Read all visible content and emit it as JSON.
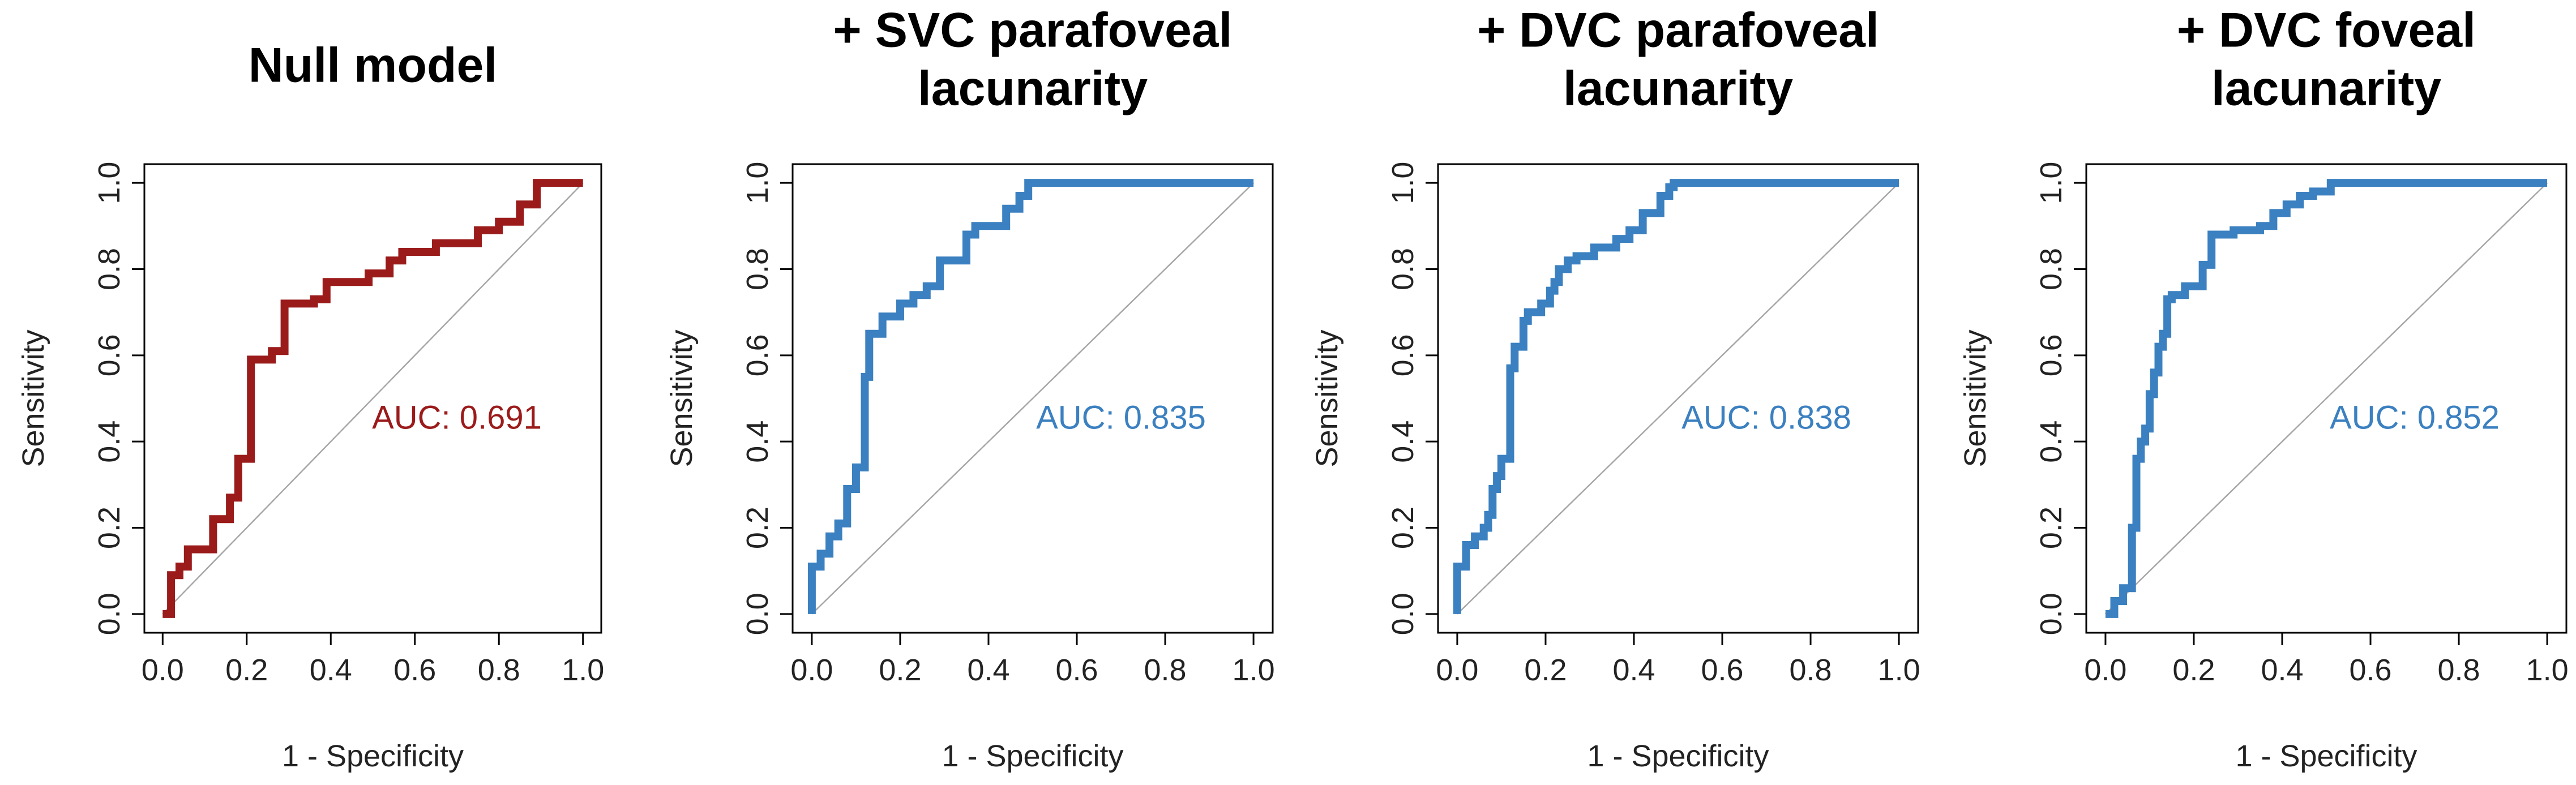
{
  "chart_data": [
    {
      "type": "line",
      "title_lines": [
        "Null model"
      ],
      "xlabel": "1 - Specificity",
      "ylabel": "Sensitivity",
      "xlim": [
        0,
        1
      ],
      "ylim": [
        0,
        1
      ],
      "xticks": [
        "0.0",
        "0.2",
        "0.4",
        "0.6",
        "0.8",
        "1.0"
      ],
      "yticks": [
        "0.0",
        "0.2",
        "0.4",
        "0.6",
        "0.8",
        "1.0"
      ],
      "color": "#9b1b1b",
      "auc_label": "AUC: 0.691",
      "auc_position": {
        "x": 0.7,
        "y": 0.45
      },
      "diagonal": true,
      "series": [
        {
          "name": "ROC",
          "x": [
            0.0,
            0.02,
            0.02,
            0.04,
            0.04,
            0.06,
            0.06,
            0.12,
            0.12,
            0.16,
            0.16,
            0.18,
            0.18,
            0.21,
            0.21,
            0.26,
            0.26,
            0.29,
            0.29,
            0.36,
            0.36,
            0.39,
            0.39,
            0.49,
            0.49,
            0.54,
            0.54,
            0.57,
            0.57,
            0.65,
            0.65,
            0.75,
            0.75,
            0.8,
            0.8,
            0.85,
            0.85,
            0.89,
            0.89,
            1.0
          ],
          "y": [
            0.0,
            0.0,
            0.09,
            0.09,
            0.11,
            0.11,
            0.15,
            0.15,
            0.22,
            0.22,
            0.27,
            0.27,
            0.36,
            0.36,
            0.59,
            0.59,
            0.61,
            0.61,
            0.72,
            0.72,
            0.73,
            0.73,
            0.77,
            0.77,
            0.79,
            0.79,
            0.82,
            0.82,
            0.84,
            0.84,
            0.86,
            0.86,
            0.89,
            0.89,
            0.91,
            0.91,
            0.95,
            0.95,
            1.0,
            1.0
          ]
        }
      ]
    },
    {
      "type": "line",
      "title_lines": [
        "+ SVC parafoveal",
        "lacunarity"
      ],
      "xlabel": "1 - Specificity",
      "ylabel": "Sensitivity",
      "xlim": [
        0,
        1
      ],
      "ylim": [
        0,
        1
      ],
      "xticks": [
        "0.0",
        "0.2",
        "0.4",
        "0.6",
        "0.8",
        "1.0"
      ],
      "yticks": [
        "0.0",
        "0.2",
        "0.4",
        "0.6",
        "0.8",
        "1.0"
      ],
      "color": "#3b80c0",
      "auc_label": "AUC: 0.835",
      "auc_position": {
        "x": 0.7,
        "y": 0.45
      },
      "diagonal": true,
      "series": [
        {
          "name": "ROC",
          "x": [
            0.0,
            0.0,
            0.02,
            0.02,
            0.04,
            0.04,
            0.06,
            0.06,
            0.08,
            0.08,
            0.1,
            0.1,
            0.12,
            0.12,
            0.13,
            0.13,
            0.16,
            0.16,
            0.2,
            0.2,
            0.23,
            0.23,
            0.26,
            0.26,
            0.29,
            0.29,
            0.35,
            0.35,
            0.37,
            0.37,
            0.44,
            0.44,
            0.47,
            0.47,
            0.49,
            0.49,
            1.0
          ],
          "y": [
            0.0,
            0.11,
            0.11,
            0.14,
            0.14,
            0.18,
            0.18,
            0.21,
            0.21,
            0.29,
            0.29,
            0.34,
            0.34,
            0.55,
            0.55,
            0.65,
            0.65,
            0.69,
            0.69,
            0.72,
            0.72,
            0.74,
            0.74,
            0.76,
            0.76,
            0.82,
            0.82,
            0.88,
            0.88,
            0.9,
            0.9,
            0.94,
            0.94,
            0.97,
            0.97,
            1.0,
            1.0
          ]
        }
      ]
    },
    {
      "type": "line",
      "title_lines": [
        "+ DVC parafoveal",
        "lacunarity"
      ],
      "xlabel": "1 - Specificity",
      "ylabel": "Sensitivity",
      "xlim": [
        0,
        1
      ],
      "ylim": [
        0,
        1
      ],
      "xticks": [
        "0.0",
        "0.2",
        "0.4",
        "0.6",
        "0.8",
        "1.0"
      ],
      "yticks": [
        "0.0",
        "0.2",
        "0.4",
        "0.6",
        "0.8",
        "1.0"
      ],
      "color": "#3b80c0",
      "auc_label": "AUC: 0.838",
      "auc_position": {
        "x": 0.7,
        "y": 0.45
      },
      "diagonal": true,
      "series": [
        {
          "name": "ROC",
          "x": [
            0.0,
            0.0,
            0.02,
            0.02,
            0.04,
            0.04,
            0.06,
            0.06,
            0.07,
            0.07,
            0.08,
            0.08,
            0.09,
            0.09,
            0.1,
            0.1,
            0.12,
            0.12,
            0.13,
            0.13,
            0.15,
            0.15,
            0.16,
            0.16,
            0.19,
            0.19,
            0.21,
            0.21,
            0.22,
            0.22,
            0.23,
            0.23,
            0.25,
            0.25,
            0.27,
            0.27,
            0.31,
            0.31,
            0.36,
            0.36,
            0.39,
            0.39,
            0.42,
            0.42,
            0.46,
            0.46,
            0.48,
            0.48,
            0.49,
            0.49,
            1.0
          ],
          "y": [
            0.0,
            0.11,
            0.11,
            0.16,
            0.16,
            0.18,
            0.18,
            0.2,
            0.2,
            0.23,
            0.23,
            0.29,
            0.29,
            0.32,
            0.32,
            0.36,
            0.36,
            0.57,
            0.57,
            0.62,
            0.62,
            0.68,
            0.68,
            0.7,
            0.7,
            0.72,
            0.72,
            0.75,
            0.75,
            0.77,
            0.77,
            0.8,
            0.8,
            0.82,
            0.82,
            0.83,
            0.83,
            0.85,
            0.85,
            0.87,
            0.87,
            0.89,
            0.89,
            0.93,
            0.93,
            0.97,
            0.97,
            0.99,
            0.99,
            1.0,
            1.0
          ]
        }
      ]
    },
    {
      "type": "line",
      "title_lines": [
        "+ DVC foveal",
        "lacunarity"
      ],
      "xlabel": "1 - Specificity",
      "ylabel": "Sensitivity",
      "xlim": [
        0,
        1
      ],
      "ylim": [
        0,
        1
      ],
      "xticks": [
        "0.0",
        "0.2",
        "0.4",
        "0.6",
        "0.8",
        "1.0"
      ],
      "yticks": [
        "0.0",
        "0.2",
        "0.4",
        "0.6",
        "0.8",
        "1.0"
      ],
      "color": "#3b80c0",
      "auc_label": "AUC: 0.852",
      "auc_position": {
        "x": 0.7,
        "y": 0.45
      },
      "diagonal": true,
      "series": [
        {
          "name": "ROC",
          "x": [
            0.0,
            0.02,
            0.02,
            0.04,
            0.04,
            0.06,
            0.06,
            0.07,
            0.07,
            0.08,
            0.08,
            0.09,
            0.09,
            0.1,
            0.1,
            0.11,
            0.11,
            0.12,
            0.12,
            0.13,
            0.13,
            0.14,
            0.14,
            0.15,
            0.15,
            0.18,
            0.18,
            0.22,
            0.22,
            0.24,
            0.24,
            0.29,
            0.29,
            0.35,
            0.35,
            0.38,
            0.38,
            0.41,
            0.41,
            0.44,
            0.44,
            0.47,
            0.47,
            0.51,
            0.51,
            1.0
          ],
          "y": [
            0.0,
            0.0,
            0.03,
            0.03,
            0.06,
            0.06,
            0.2,
            0.2,
            0.36,
            0.36,
            0.4,
            0.4,
            0.43,
            0.43,
            0.51,
            0.51,
            0.56,
            0.56,
            0.62,
            0.62,
            0.65,
            0.65,
            0.73,
            0.73,
            0.74,
            0.74,
            0.76,
            0.76,
            0.81,
            0.81,
            0.88,
            0.88,
            0.89,
            0.89,
            0.9,
            0.9,
            0.93,
            0.93,
            0.95,
            0.95,
            0.97,
            0.97,
            0.98,
            0.98,
            1.0,
            1.0
          ]
        }
      ]
    }
  ]
}
